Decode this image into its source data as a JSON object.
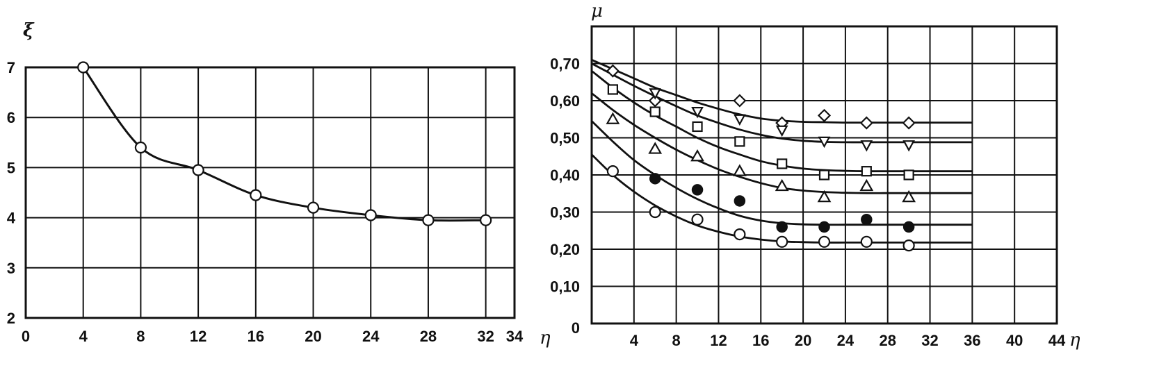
{
  "chart_data": [
    {
      "type": "line",
      "xlabel": "η",
      "ylabel": "ξ",
      "xlim": [
        0,
        34
      ],
      "ylim": [
        2,
        7
      ],
      "x_ticks": [
        0,
        4,
        8,
        12,
        16,
        20,
        24,
        28,
        32,
        34
      ],
      "x_tick_labels": [
        "0",
        "4",
        "8",
        "12",
        "16",
        "20",
        "24",
        "28",
        "32",
        "34"
      ],
      "y_ticks": [
        2,
        3,
        4,
        5,
        6,
        7
      ],
      "y_tick_labels": [
        "2",
        "3",
        "4",
        "5",
        "6",
        "7"
      ],
      "grid": true,
      "series": [
        {
          "marker": "open-circle",
          "x": [
            4,
            8,
            12,
            16,
            20,
            24,
            28,
            32
          ],
          "y": [
            7.0,
            5.4,
            4.95,
            4.45,
            4.2,
            4.05,
            3.95,
            3.95
          ]
        }
      ]
    },
    {
      "type": "scatter",
      "xlabel": "η",
      "ylabel": "μ",
      "xlim": [
        0,
        44
      ],
      "ylim": [
        0,
        0.8
      ],
      "x_ticks": [
        4,
        8,
        12,
        16,
        20,
        24,
        28,
        32,
        36,
        40,
        44
      ],
      "x_tick_labels": [
        "4",
        "8",
        "12",
        "16",
        "20",
        "24",
        "28",
        "32",
        "36",
        "40",
        "44"
      ],
      "y_ticks": [
        0,
        0.1,
        0.2,
        0.3,
        0.4,
        0.5,
        0.6,
        0.7
      ],
      "y_tick_labels": [
        "0",
        "0,10",
        "0,20",
        "0,30",
        "0,40",
        "0,50",
        "0,60",
        "0,70"
      ],
      "grid": true,
      "series": [
        {
          "marker": "open-diamond",
          "points_x": [
            2,
            6,
            14,
            18,
            22,
            26,
            30
          ],
          "points_y": [
            0.68,
            0.6,
            0.6,
            0.54,
            0.56,
            0.54,
            0.54
          ],
          "curve_x": [
            0,
            2,
            4,
            6,
            8,
            10,
            12,
            14,
            16,
            18,
            20,
            22,
            24,
            26,
            28,
            30,
            32,
            34,
            36
          ],
          "curve_y": [
            0.71,
            0.685,
            0.66,
            0.635,
            0.615,
            0.595,
            0.578,
            0.563,
            0.552,
            0.546,
            0.543,
            0.542,
            0.541,
            0.541,
            0.541,
            0.541,
            0.541,
            0.541,
            0.541
          ]
        },
        {
          "marker": "inverted-triangle",
          "points_x": [
            6,
            10,
            14,
            18,
            22,
            26,
            30
          ],
          "points_y": [
            0.62,
            0.57,
            0.55,
            0.52,
            0.49,
            0.48,
            0.48
          ],
          "curve_x": [
            0,
            2,
            4,
            6,
            8,
            10,
            12,
            14,
            16,
            18,
            20,
            22,
            24,
            26,
            28,
            30,
            32,
            34,
            36
          ],
          "curve_y": [
            0.7,
            0.67,
            0.64,
            0.612,
            0.585,
            0.56,
            0.54,
            0.522,
            0.508,
            0.498,
            0.492,
            0.489,
            0.488,
            0.488,
            0.488,
            0.488,
            0.488,
            0.488,
            0.488
          ]
        },
        {
          "marker": "open-square",
          "points_x": [
            2,
            6,
            10,
            14,
            18,
            22,
            26,
            30
          ],
          "points_y": [
            0.63,
            0.57,
            0.53,
            0.49,
            0.43,
            0.4,
            0.41,
            0.4
          ],
          "curve_x": [
            0,
            2,
            4,
            6,
            8,
            10,
            12,
            14,
            16,
            18,
            20,
            22,
            24,
            26,
            28,
            30,
            32,
            34,
            36
          ],
          "curve_y": [
            0.68,
            0.635,
            0.595,
            0.56,
            0.53,
            0.5,
            0.475,
            0.455,
            0.437,
            0.425,
            0.417,
            0.413,
            0.411,
            0.41,
            0.41,
            0.41,
            0.41,
            0.41,
            0.41
          ]
        },
        {
          "marker": "open-triangle",
          "points_x": [
            2,
            6,
            10,
            14,
            18,
            22,
            26,
            30
          ],
          "points_y": [
            0.55,
            0.47,
            0.45,
            0.41,
            0.37,
            0.34,
            0.37,
            0.34
          ],
          "curve_x": [
            0,
            2,
            4,
            6,
            8,
            10,
            12,
            14,
            16,
            18,
            20,
            22,
            24,
            26,
            28,
            30,
            32,
            34,
            36
          ],
          "curve_y": [
            0.62,
            0.575,
            0.535,
            0.5,
            0.468,
            0.44,
            0.415,
            0.395,
            0.378,
            0.365,
            0.358,
            0.354,
            0.352,
            0.351,
            0.351,
            0.351,
            0.351,
            0.351,
            0.351
          ]
        },
        {
          "marker": "filled-circle",
          "points_x": [
            6,
            10,
            14,
            18,
            22,
            26,
            30
          ],
          "points_y": [
            0.39,
            0.36,
            0.33,
            0.26,
            0.26,
            0.28,
            0.26
          ],
          "curve_x": [
            0,
            2,
            4,
            6,
            8,
            10,
            12,
            14,
            16,
            18,
            20,
            22,
            24,
            26,
            28,
            30,
            32,
            34,
            36
          ],
          "curve_y": [
            0.545,
            0.49,
            0.44,
            0.4,
            0.365,
            0.335,
            0.31,
            0.29,
            0.277,
            0.27,
            0.267,
            0.266,
            0.266,
            0.266,
            0.266,
            0.266,
            0.266,
            0.266,
            0.266
          ]
        },
        {
          "marker": "open-circle",
          "points_x": [
            2,
            6,
            10,
            14,
            18,
            22,
            26,
            30
          ],
          "points_y": [
            0.41,
            0.3,
            0.28,
            0.24,
            0.22,
            0.22,
            0.22,
            0.21
          ],
          "curve_x": [
            0,
            2,
            4,
            6,
            8,
            10,
            12,
            14,
            16,
            18,
            20,
            22,
            24,
            26,
            28,
            30,
            32,
            34,
            36
          ],
          "curve_y": [
            0.455,
            0.4,
            0.355,
            0.318,
            0.288,
            0.264,
            0.247,
            0.234,
            0.226,
            0.221,
            0.219,
            0.218,
            0.218,
            0.218,
            0.218,
            0.218,
            0.218,
            0.218,
            0.218
          ]
        }
      ]
    }
  ]
}
